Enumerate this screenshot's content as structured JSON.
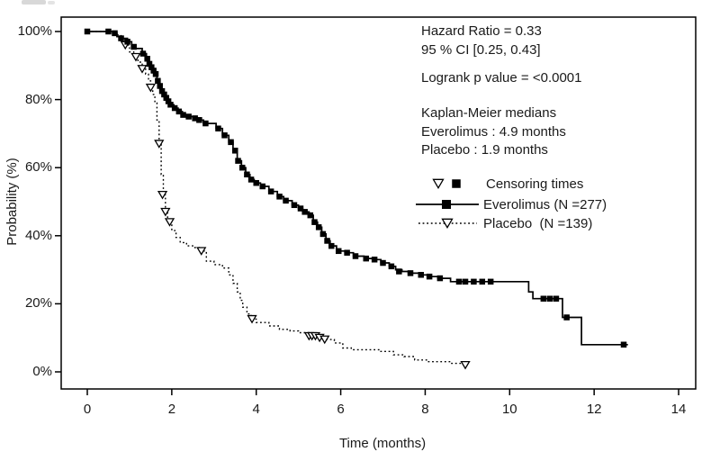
{
  "figure": {
    "background": "#ffffff",
    "line_color": "#000000"
  },
  "annotations": {
    "hazard_ratio": "Hazard Ratio = 0.33",
    "confidence_interval": "95 % CI [0.25, 0.43]",
    "logrank": "Logrank p value = <0.0001",
    "medians_header": "Kaplan-Meier medians",
    "median_everolimus": "Everolimus : 4.9 months",
    "median_placebo": "Placebo : 1.9 months"
  },
  "legend": {
    "censoring_label": "Censoring times",
    "everolimus_label": "Everolimus (N =277)",
    "placebo_label": "Placebo  (N =139)"
  },
  "chart_data": {
    "type": "line",
    "subtype": "kaplan_meier_step",
    "title": "",
    "xlabel": "Time (months)",
    "ylabel": "Probability (%)",
    "xlim": [
      0,
      14
    ],
    "ylim": [
      0,
      100
    ],
    "x_ticks": [
      0,
      2,
      4,
      6,
      8,
      10,
      12,
      14
    ],
    "y_ticks": [
      0,
      20,
      40,
      60,
      80,
      100
    ],
    "y_tick_format": "percent",
    "grid": false,
    "legend_position": "inside-right",
    "stats": {
      "hazard_ratio": 0.33,
      "ci_95": [
        0.25,
        0.43
      ],
      "logrank_p": "<0.0001",
      "median_everolimus_months": 4.9,
      "median_placebo_months": 1.9
    },
    "series": [
      {
        "name": "Everolimus (N =277)",
        "n": 277,
        "line_style": "solid",
        "marker": "filled-square",
        "end_time": 12.8,
        "points": [
          [
            0,
            100
          ],
          [
            0.6,
            99.5
          ],
          [
            0.7,
            98.5
          ],
          [
            0.8,
            98
          ],
          [
            0.95,
            97
          ],
          [
            1.05,
            96
          ],
          [
            1.15,
            95
          ],
          [
            1.3,
            93.5
          ],
          [
            1.4,
            92
          ],
          [
            1.45,
            90.5
          ],
          [
            1.5,
            89.5
          ],
          [
            1.55,
            88.5
          ],
          [
            1.6,
            87.5
          ],
          [
            1.65,
            85.5
          ],
          [
            1.7,
            84
          ],
          [
            1.75,
            82.5
          ],
          [
            1.8,
            81.5
          ],
          [
            1.85,
            80.5
          ],
          [
            1.9,
            79.5
          ],
          [
            1.95,
            78.5
          ],
          [
            2.05,
            77.5
          ],
          [
            2.15,
            76.5
          ],
          [
            2.25,
            75.5
          ],
          [
            2.35,
            75
          ],
          [
            2.5,
            74.5
          ],
          [
            2.6,
            74
          ],
          [
            2.75,
            73
          ],
          [
            3.05,
            71.5
          ],
          [
            3.2,
            69.5
          ],
          [
            3.35,
            67.5
          ],
          [
            3.45,
            65
          ],
          [
            3.55,
            62
          ],
          [
            3.65,
            60
          ],
          [
            3.75,
            58
          ],
          [
            3.85,
            56.5
          ],
          [
            3.95,
            55.5
          ],
          [
            4.1,
            54.5
          ],
          [
            4.3,
            53
          ],
          [
            4.5,
            51.5
          ],
          [
            4.65,
            50.3
          ],
          [
            4.85,
            49
          ],
          [
            5.0,
            48
          ],
          [
            5.1,
            47
          ],
          [
            5.25,
            46
          ],
          [
            5.35,
            44
          ],
          [
            5.45,
            42.5
          ],
          [
            5.55,
            40.5
          ],
          [
            5.65,
            38.5
          ],
          [
            5.75,
            37
          ],
          [
            5.9,
            35.5
          ],
          [
            6.1,
            35
          ],
          [
            6.3,
            34
          ],
          [
            6.55,
            33.3
          ],
          [
            6.75,
            33
          ],
          [
            6.95,
            32
          ],
          [
            7.15,
            31
          ],
          [
            7.3,
            30
          ],
          [
            7.45,
            29.5
          ],
          [
            7.6,
            29
          ],
          [
            7.85,
            28.5
          ],
          [
            8.05,
            28
          ],
          [
            8.3,
            27.5
          ],
          [
            8.6,
            26.5
          ],
          [
            10.45,
            23.5
          ],
          [
            10.55,
            21.5
          ],
          [
            11.25,
            16
          ],
          [
            11.7,
            8
          ]
        ],
        "censor_marks": [
          [
            0,
            100
          ],
          [
            0.5,
            100
          ],
          [
            0.65,
            99.5
          ],
          [
            0.8,
            98
          ],
          [
            0.95,
            97
          ],
          [
            1.1,
            95.5
          ],
          [
            1.32,
            93.5
          ],
          [
            1.42,
            92
          ],
          [
            1.47,
            90.5
          ],
          [
            1.52,
            89.5
          ],
          [
            1.57,
            88.5
          ],
          [
            1.62,
            87.5
          ],
          [
            1.67,
            85.5
          ],
          [
            1.72,
            84
          ],
          [
            1.77,
            82.5
          ],
          [
            1.82,
            81.5
          ],
          [
            1.87,
            80.5
          ],
          [
            1.92,
            79.5
          ],
          [
            1.97,
            78.5
          ],
          [
            2.07,
            77.5
          ],
          [
            2.17,
            76.5
          ],
          [
            2.27,
            75.5
          ],
          [
            2.4,
            75
          ],
          [
            2.55,
            74.5
          ],
          [
            2.65,
            74
          ],
          [
            2.8,
            73
          ],
          [
            3.1,
            71.5
          ],
          [
            3.25,
            69.5
          ],
          [
            3.4,
            67.5
          ],
          [
            3.5,
            65
          ],
          [
            3.57,
            62
          ],
          [
            3.67,
            60
          ],
          [
            3.78,
            58
          ],
          [
            3.88,
            56.5
          ],
          [
            4.0,
            55.5
          ],
          [
            4.15,
            54.5
          ],
          [
            4.35,
            53
          ],
          [
            4.55,
            51.5
          ],
          [
            4.7,
            50.3
          ],
          [
            4.9,
            49
          ],
          [
            5.05,
            48
          ],
          [
            5.15,
            47
          ],
          [
            5.28,
            46
          ],
          [
            5.38,
            44
          ],
          [
            5.48,
            42.5
          ],
          [
            5.58,
            40.5
          ],
          [
            5.68,
            38.5
          ],
          [
            5.78,
            37
          ],
          [
            5.95,
            35.5
          ],
          [
            6.15,
            35
          ],
          [
            6.35,
            34
          ],
          [
            6.6,
            33.3
          ],
          [
            6.8,
            33
          ],
          [
            7.0,
            32
          ],
          [
            7.2,
            31
          ],
          [
            7.38,
            29.5
          ],
          [
            7.65,
            29
          ],
          [
            7.9,
            28.5
          ],
          [
            8.1,
            28
          ],
          [
            8.35,
            27.5
          ],
          [
            8.8,
            26.5
          ],
          [
            8.95,
            26.5
          ],
          [
            9.15,
            26.5
          ],
          [
            9.35,
            26.5
          ],
          [
            9.55,
            26.5
          ],
          [
            10.8,
            21.5
          ],
          [
            10.95,
            21.5
          ],
          [
            11.1,
            21.5
          ],
          [
            11.35,
            16
          ],
          [
            12.7,
            8
          ]
        ]
      },
      {
        "name": "Placebo (N =139)",
        "n": 139,
        "line_style": "dotted",
        "marker": "open-triangle-down",
        "end_time": 9.05,
        "points": [
          [
            0,
            100
          ],
          [
            0.65,
            99
          ],
          [
            0.8,
            97.5
          ],
          [
            0.9,
            96
          ],
          [
            1.0,
            94
          ],
          [
            1.1,
            92.5
          ],
          [
            1.2,
            91
          ],
          [
            1.3,
            89
          ],
          [
            1.38,
            87.5
          ],
          [
            1.45,
            85.5
          ],
          [
            1.5,
            83.5
          ],
          [
            1.55,
            81.5
          ],
          [
            1.6,
            79
          ],
          [
            1.65,
            74
          ],
          [
            1.7,
            67
          ],
          [
            1.75,
            58
          ],
          [
            1.8,
            52
          ],
          [
            1.85,
            47
          ],
          [
            1.9,
            44
          ],
          [
            2.0,
            41.5
          ],
          [
            2.1,
            39.5
          ],
          [
            2.2,
            38
          ],
          [
            2.35,
            37
          ],
          [
            2.55,
            36.5
          ],
          [
            2.7,
            35.5
          ],
          [
            2.82,
            32.5
          ],
          [
            3.0,
            31.5
          ],
          [
            3.2,
            30.5
          ],
          [
            3.35,
            28.5
          ],
          [
            3.45,
            26
          ],
          [
            3.55,
            23.5
          ],
          [
            3.62,
            21
          ],
          [
            3.68,
            19
          ],
          [
            3.78,
            17
          ],
          [
            3.88,
            15.5
          ],
          [
            4.0,
            14.5
          ],
          [
            4.3,
            13.5
          ],
          [
            4.55,
            12.5
          ],
          [
            4.8,
            12
          ],
          [
            5.0,
            11.5
          ],
          [
            5.25,
            10.5
          ],
          [
            5.5,
            10
          ],
          [
            5.62,
            9.5
          ],
          [
            5.85,
            8.5
          ],
          [
            6.05,
            7
          ],
          [
            6.25,
            6.5
          ],
          [
            6.95,
            6
          ],
          [
            7.25,
            5
          ],
          [
            7.5,
            4.5
          ],
          [
            7.75,
            3.5
          ],
          [
            8.05,
            3
          ],
          [
            8.6,
            2.5
          ],
          [
            8.95,
            2
          ]
        ],
        "censor_marks": [
          [
            0.9,
            96
          ],
          [
            1.15,
            92.5
          ],
          [
            1.3,
            89
          ],
          [
            1.5,
            83.5
          ],
          [
            1.7,
            67
          ],
          [
            1.78,
            52
          ],
          [
            1.85,
            47
          ],
          [
            1.95,
            44
          ],
          [
            2.7,
            35.5
          ],
          [
            3.9,
            15.5
          ],
          [
            5.25,
            10.5
          ],
          [
            5.32,
            10.5
          ],
          [
            5.4,
            10.5
          ],
          [
            5.5,
            10
          ],
          [
            5.62,
            9.5
          ],
          [
            8.95,
            2
          ]
        ]
      }
    ]
  }
}
